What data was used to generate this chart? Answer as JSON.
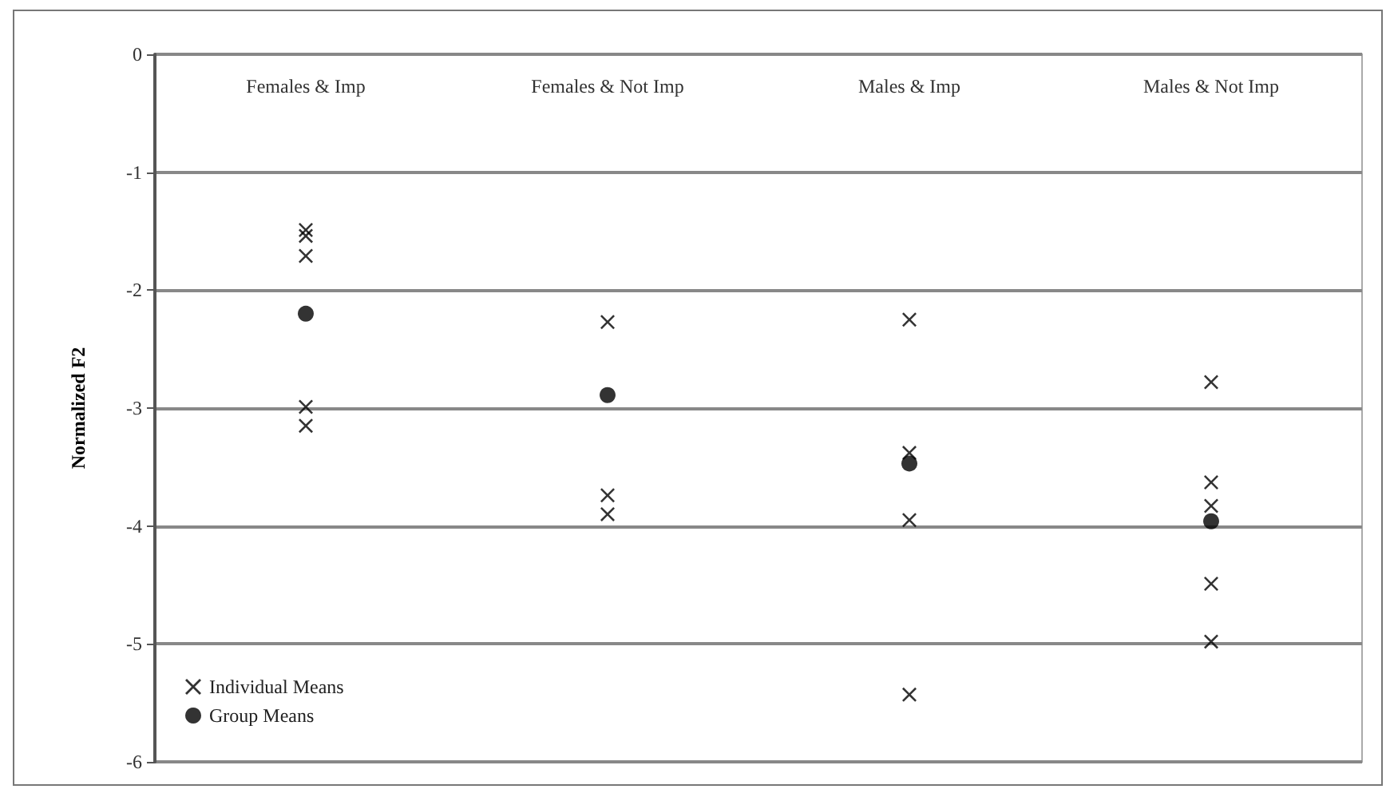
{
  "chart_data": {
    "type": "scatter",
    "ylabel": "Normalized F2",
    "categories": [
      "Females & Imp",
      "Females & Not Imp",
      "Males & Imp",
      "Males & Not Imp"
    ],
    "series": [
      {
        "name": "Individual Means",
        "color": "#000000",
        "marker": "cross",
        "x": [
          "Females & Imp",
          "Females & Imp",
          "Females & Imp",
          "Females & Imp",
          "Females & Imp",
          "Females & Not Imp",
          "Females & Not Imp",
          "Females & Not Imp",
          "Males & Imp",
          "Males & Imp",
          "Males & Imp",
          "Males & Imp",
          "Males & Not Imp",
          "Males & Not Imp",
          "Males & Not Imp",
          "Males & Not Imp",
          "Males & Not Imp"
        ],
        "values": [
          -1.49,
          -1.54,
          -1.71,
          -2.99,
          -3.15,
          -2.27,
          -3.74,
          -3.9,
          -2.25,
          -3.38,
          -3.95,
          -5.43,
          -2.78,
          -3.63,
          -3.83,
          -4.49,
          -4.98
        ]
      },
      {
        "name": "Group Means",
        "color": "#000000",
        "marker": "circle",
        "x": [
          "Females & Imp",
          "Females & Not Imp",
          "Males & Imp",
          "Males & Not Imp"
        ],
        "values": [
          -2.2,
          -2.89,
          -3.47,
          -3.96
        ]
      }
    ],
    "ylim": [
      -6,
      0
    ],
    "yticks": [
      -6,
      -5,
      -4,
      -3,
      -2,
      -1,
      0
    ],
    "grid": "y",
    "legend": "bottom left"
  }
}
